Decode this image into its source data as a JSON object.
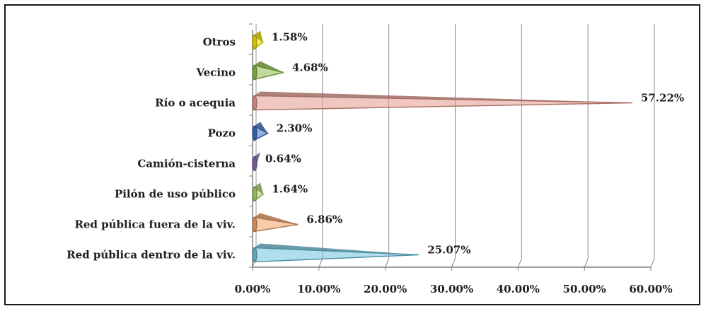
{
  "chart_data": {
    "type": "bar",
    "orientation": "horizontal",
    "title": "",
    "xlabel": "",
    "ylabel": "",
    "categories": [
      "Otros",
      "Vecino",
      "Río o acequia",
      "Pozo",
      "Camión-cisterna",
      "Pilón de uso público",
      "Red pública fuera de la viv.",
      "Red pública dentro de la viv."
    ],
    "values": [
      1.58,
      4.68,
      57.22,
      2.3,
      0.64,
      1.64,
      6.86,
      25.07
    ],
    "value_labels": [
      "1.58%",
      "4.68%",
      "57.22%",
      "2.30%",
      "0.64%",
      "1.64%",
      "6.86%",
      "25.07%"
    ],
    "colors": [
      "#f2e200",
      "#8dbe4a",
      "#e59a8e",
      "#3b6fc4",
      "#8a6bb5",
      "#a8d36a",
      "#f0a066",
      "#6fc2dc"
    ],
    "xlim": [
      0,
      60
    ],
    "xticks": [
      "0.00%",
      "10.00%",
      "20.00%",
      "30.00%",
      "40.00%",
      "50.00%",
      "60.00%"
    ],
    "grid": true,
    "legend": "none"
  }
}
